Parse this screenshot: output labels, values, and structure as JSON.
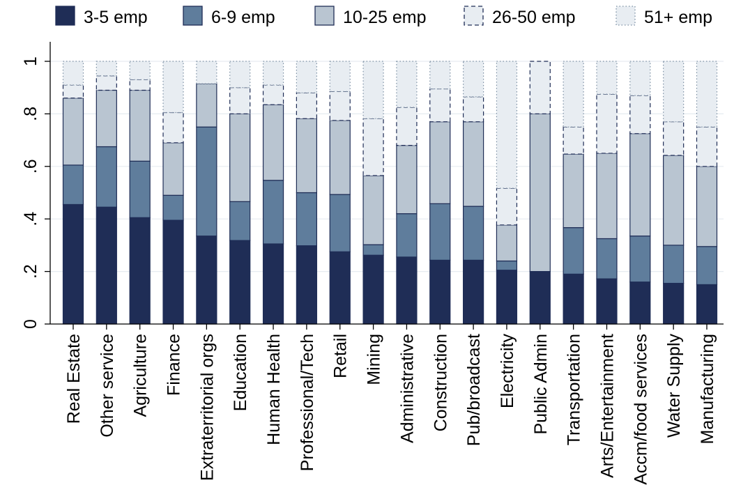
{
  "chart_data": {
    "type": "bar",
    "stacked": true,
    "title": "",
    "xlabel": "",
    "ylabel": "",
    "ylim": [
      0,
      1
    ],
    "yticks": [
      {
        "value": 0,
        "label": "0"
      },
      {
        "value": 0.2,
        "label": ".2"
      },
      {
        "value": 0.4,
        "label": ".4"
      },
      {
        "value": 0.6,
        "label": ".6"
      },
      {
        "value": 0.8,
        "label": ".8"
      },
      {
        "value": 1,
        "label": "1"
      }
    ],
    "grid": true,
    "legend_position": "top",
    "categories": [
      "Real Estate",
      "Other service",
      "Agriculture",
      "Finance",
      "Extraterritorial orgs",
      "Education",
      "Human Health",
      "Professional/Tech",
      "Retail",
      "Mining",
      "Administrative",
      "Construction",
      "Pub/broadcast",
      "Electricity",
      "Public Admin",
      "Transportation",
      "Arts/Entertainment",
      "Accm/food services",
      "Water Supply",
      "Manufacturing"
    ],
    "series": [
      {
        "name": "3-5 emp",
        "fill": "#1f2d56",
        "stroke": "#1f2d56",
        "dashed": false,
        "values": [
          0.455,
          0.445,
          0.405,
          0.395,
          0.335,
          0.318,
          0.305,
          0.298,
          0.275,
          0.262,
          0.255,
          0.243,
          0.243,
          0.205,
          0.2,
          0.19,
          0.172,
          0.16,
          0.155,
          0.15
        ]
      },
      {
        "name": "6-9 emp",
        "fill": "#5f7d9c",
        "stroke": "#1f2d56",
        "dashed": false,
        "values": [
          0.15,
          0.23,
          0.215,
          0.095,
          0.415,
          0.148,
          0.242,
          0.202,
          0.218,
          0.04,
          0.165,
          0.215,
          0.205,
          0.035,
          0.0,
          0.177,
          0.153,
          0.175,
          0.145,
          0.145
        ]
      },
      {
        "name": "10-25 emp",
        "fill": "#b9c5d1",
        "stroke": "#1f2d56",
        "dashed": false,
        "values": [
          0.255,
          0.215,
          0.27,
          0.2,
          0.165,
          0.334,
          0.288,
          0.282,
          0.282,
          0.263,
          0.26,
          0.312,
          0.322,
          0.137,
          0.6,
          0.28,
          0.325,
          0.39,
          0.342,
          0.305
        ]
      },
      {
        "name": "26-50 emp",
        "fill": "#e8edf2",
        "stroke": "#1f2d56",
        "dashed": true,
        "values": [
          0.05,
          0.055,
          0.04,
          0.115,
          0.0,
          0.1,
          0.075,
          0.098,
          0.11,
          0.217,
          0.145,
          0.125,
          0.095,
          0.14,
          0.2,
          0.103,
          0.225,
          0.145,
          0.128,
          0.15
        ]
      },
      {
        "name": "51+ emp",
        "fill": "#e8edf2",
        "stroke": "#7a8ea2",
        "dashed": "dotted",
        "values": [
          0.09,
          0.055,
          0.07,
          0.195,
          0.085,
          0.1,
          0.09,
          0.12,
          0.115,
          0.218,
          0.175,
          0.105,
          0.135,
          0.483,
          0.0,
          0.25,
          0.125,
          0.13,
          0.23,
          0.25
        ]
      }
    ]
  }
}
